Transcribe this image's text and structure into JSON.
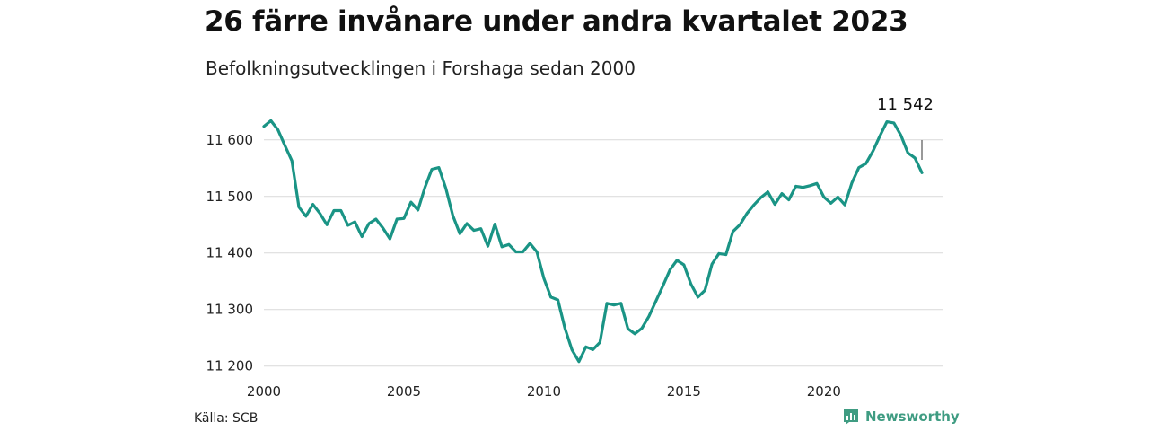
{
  "header": {
    "title": "26 färre invånare under andra kvartalet 2023",
    "subtitle": "Befolkningsutvecklingen i Forshaga sedan 2000"
  },
  "footer": {
    "source": "Källa: SCB",
    "brand": "Newsworthy",
    "brand_icon": "newsworthy-logo-icon"
  },
  "colors": {
    "line": "#1a9485",
    "grid": "#d9d9d9",
    "brand": "#3f9c82"
  },
  "chart_data": {
    "type": "line",
    "title": "26 färre invånare under andra kvartalet 2023",
    "subtitle": "Befolkningsutvecklingen i Forshaga sedan 2000",
    "xlabel": "",
    "ylabel": "",
    "xlim": [
      2000,
      2024
    ],
    "ylim": [
      11190,
      11660
    ],
    "x_ticks": [
      {
        "value": 2000,
        "label": "2000"
      },
      {
        "value": 2005,
        "label": "2005"
      },
      {
        "value": 2010,
        "label": "2010"
      },
      {
        "value": 2015,
        "label": "2015"
      },
      {
        "value": 2020,
        "label": "2020"
      }
    ],
    "y_ticks": [
      {
        "value": 11200,
        "label": "11 200"
      },
      {
        "value": 11300,
        "label": "11 300"
      },
      {
        "value": 11400,
        "label": "11 400"
      },
      {
        "value": 11500,
        "label": "11 500"
      },
      {
        "value": 11600,
        "label": "11 600"
      }
    ],
    "grid": "horizontal",
    "last_value_label": "11 542",
    "series": [
      {
        "x": [
          2000.0,
          2000.25,
          2000.5,
          2000.75,
          2001.0,
          2001.25,
          2001.5,
          2001.75,
          2002.0,
          2002.25,
          2002.5,
          2002.75,
          2003.0,
          2003.25,
          2003.5,
          2003.75,
          2004.0,
          2004.25,
          2004.5,
          2004.75,
          2005.0,
          2005.25,
          2005.5,
          2005.75,
          2006.0,
          2006.25,
          2006.5,
          2006.75,
          2007.0,
          2007.25,
          2007.5,
          2007.75,
          2008.0,
          2008.25,
          2008.5,
          2008.75,
          2009.0,
          2009.25,
          2009.5,
          2009.75,
          2010.0,
          2010.25,
          2010.5,
          2010.75,
          2011.0,
          2011.25,
          2011.5,
          2011.75,
          2012.0,
          2012.25,
          2012.5,
          2012.75,
          2013.0,
          2013.25,
          2013.5,
          2013.75,
          2014.0,
          2014.25,
          2014.5,
          2014.75,
          2015.0,
          2015.25,
          2015.5,
          2015.75,
          2016.0,
          2016.25,
          2016.5,
          2016.75,
          2017.0,
          2017.25,
          2017.5,
          2017.75,
          2018.0,
          2018.25,
          2018.5,
          2018.75,
          2019.0,
          2019.25,
          2019.5,
          2019.75,
          2020.0,
          2020.25,
          2020.5,
          2020.75,
          2021.0,
          2021.25,
          2021.5,
          2021.75,
          2022.0,
          2022.25,
          2022.5,
          2022.75,
          2023.0,
          2023.25,
          2023.5
        ],
        "y": [
          11624,
          11634,
          11618,
          11590,
          11563,
          11481,
          11465,
          11486,
          11470,
          11450,
          11475,
          11475,
          11449,
          11455,
          11429,
          11452,
          11460,
          11444,
          11425,
          11460,
          11461,
          11490,
          11476,
          11516,
          11548,
          11551,
          11514,
          11466,
          11434,
          11452,
          11440,
          11443,
          11412,
          11451,
          11411,
          11415,
          11402,
          11402,
          11417,
          11402,
          11355,
          11322,
          11317,
          11267,
          11229,
          11208,
          11234,
          11229,
          11242,
          11311,
          11308,
          11311,
          11266,
          11257,
          11267,
          11288,
          11315,
          11342,
          11370,
          11387,
          11379,
          11345,
          11322,
          11334,
          11380,
          11399,
          11397,
          11438,
          11450,
          11470,
          11485,
          11498,
          11508,
          11486,
          11505,
          11494,
          11518,
          11516,
          11519,
          11523,
          11499,
          11488,
          11499,
          11485,
          11524,
          11551,
          11558,
          11580,
          11607,
          11632,
          11630,
          11608,
          11577,
          11568,
          11542
        ]
      }
    ]
  }
}
